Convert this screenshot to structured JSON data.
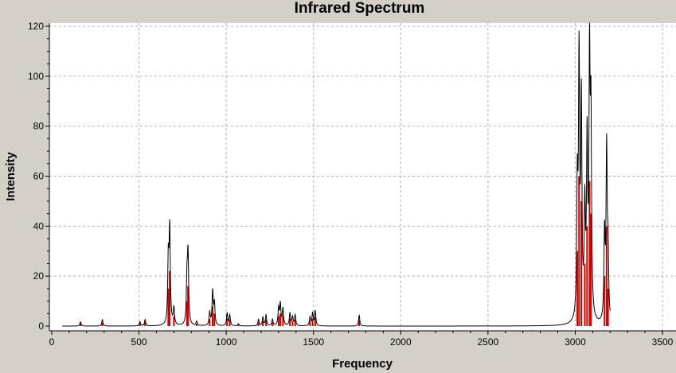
{
  "chart_data": {
    "type": "line",
    "title": "Infrared Spectrum",
    "xlabel": "Frequency",
    "ylabel": "Intensity",
    "xlim": [
      0,
      3500
    ],
    "ylim": [
      0,
      120
    ],
    "x_ticks": [
      0,
      500,
      1000,
      1500,
      2000,
      2500,
      3000,
      3500
    ],
    "y_ticks": [
      0,
      20,
      40,
      60,
      80,
      100,
      120
    ],
    "grid": true,
    "legend": "none",
    "colors": {
      "plot_background": "#ffffff",
      "frame": "#d4d0c8",
      "grid": "#b0b0b0",
      "spectrum_line": "#000000",
      "stick": "#cc0000"
    },
    "line_width_cm": 8,
    "spectrum_range": [
      60,
      3200
    ],
    "sticks": [
      {
        "x": 165,
        "y": 1
      },
      {
        "x": 290,
        "y": 1.5
      },
      {
        "x": 505,
        "y": 1
      },
      {
        "x": 535,
        "y": 1.5
      },
      {
        "x": 668,
        "y": 15
      },
      {
        "x": 676,
        "y": 22
      },
      {
        "x": 700,
        "y": 4
      },
      {
        "x": 775,
        "y": 10
      },
      {
        "x": 781,
        "y": 16
      },
      {
        "x": 830,
        "y": 1
      },
      {
        "x": 905,
        "y": 3
      },
      {
        "x": 922,
        "y": 8
      },
      {
        "x": 932,
        "y": 5
      },
      {
        "x": 1005,
        "y": 3
      },
      {
        "x": 1020,
        "y": 2.5
      },
      {
        "x": 1070,
        "y": 0.5
      },
      {
        "x": 1185,
        "y": 1.5
      },
      {
        "x": 1210,
        "y": 2
      },
      {
        "x": 1228,
        "y": 2.5
      },
      {
        "x": 1265,
        "y": 1.5
      },
      {
        "x": 1300,
        "y": 4
      },
      {
        "x": 1310,
        "y": 5
      },
      {
        "x": 1325,
        "y": 4
      },
      {
        "x": 1365,
        "y": 3
      },
      {
        "x": 1380,
        "y": 2
      },
      {
        "x": 1395,
        "y": 2.5
      },
      {
        "x": 1480,
        "y": 2
      },
      {
        "x": 1495,
        "y": 3
      },
      {
        "x": 1510,
        "y": 3.5
      },
      {
        "x": 1762,
        "y": 2.5
      },
      {
        "x": 3012,
        "y": 30
      },
      {
        "x": 3022,
        "y": 60
      },
      {
        "x": 3035,
        "y": 50
      },
      {
        "x": 3055,
        "y": 25
      },
      {
        "x": 3068,
        "y": 40
      },
      {
        "x": 3082,
        "y": 58
      },
      {
        "x": 3090,
        "y": 45
      },
      {
        "x": 3168,
        "y": 20
      },
      {
        "x": 3180,
        "y": 40
      },
      {
        "x": 3188,
        "y": 15
      }
    ]
  }
}
